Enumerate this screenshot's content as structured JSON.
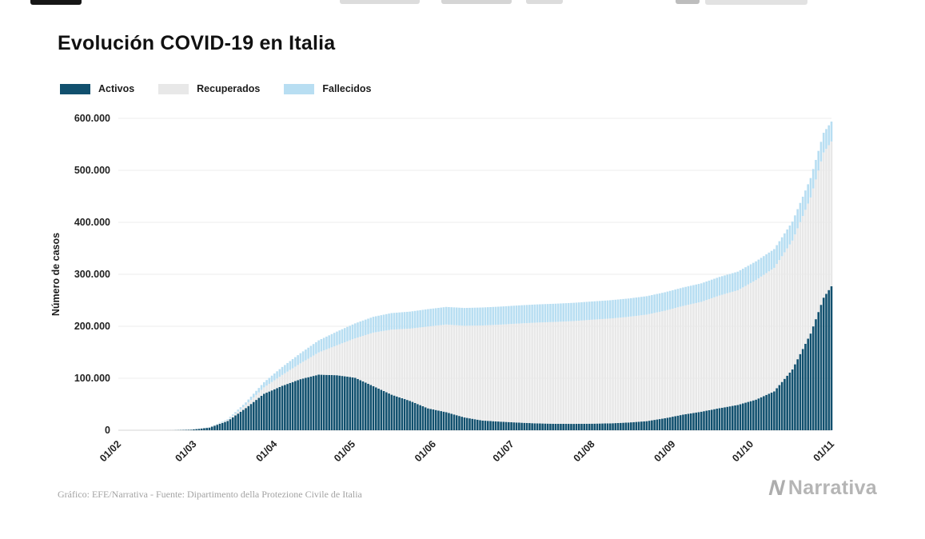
{
  "page": {
    "title": "Evolución COVID-19 en Italia",
    "footer_source": "Gráfico: EFE/Narrativa - Fuente: Dipartimento della Protezione Civile de Italia",
    "brand": "Narrativa",
    "brand_icon": "N"
  },
  "legend": [
    {
      "label": "Activos",
      "color": "#11506e"
    },
    {
      "label": "Recuperados",
      "color": "#e8e8e8"
    },
    {
      "label": "Fallecidos",
      "color": "#b8def2"
    }
  ],
  "chart_data": {
    "type": "bar",
    "stacked": true,
    "title": "Evolución COVID-19 en Italia",
    "xlabel": "",
    "ylabel": "Número de casos",
    "ylim": [
      0,
      600000
    ],
    "grid": "horizontal",
    "legend_position": "top-left",
    "y_ticks": [
      "0",
      "100.000",
      "200.000",
      "300.000",
      "400.000",
      "500.000",
      "600.000"
    ],
    "x_tick_labels": [
      "01/02",
      "01/03",
      "01/04",
      "01/05",
      "01/06",
      "01/07",
      "01/08",
      "01/09",
      "01/10",
      "01/11"
    ],
    "x_tick_days": [
      0,
      29,
      60,
      90,
      121,
      151,
      182,
      213,
      243,
      274
    ],
    "series_order_bottom_to_top": [
      "Activos",
      "Recuperados",
      "Fallecidos"
    ],
    "point_format": [
      "day_offset_from_01_02",
      "activos",
      "recuperados",
      "fallecidos"
    ],
    "points": [
      [
        0,
        0,
        0,
        0
      ],
      [
        7,
        3,
        0,
        0
      ],
      [
        14,
        3,
        0,
        0
      ],
      [
        21,
        76,
        2,
        2
      ],
      [
        28,
        1050,
        50,
        29
      ],
      [
        35,
        5060,
        590,
        235
      ],
      [
        42,
        17750,
        1970,
        1440
      ],
      [
        49,
        42680,
        6070,
        4825
      ],
      [
        56,
        70065,
        12385,
        10025
      ],
      [
        63,
        85390,
        21000,
        15360
      ],
      [
        70,
        98270,
        30455,
        19470
      ],
      [
        77,
        106960,
        42730,
        23230
      ],
      [
        84,
        105845,
        57575,
        26385
      ],
      [
        91,
        100945,
        75945,
        28710
      ],
      [
        98,
        84840,
        103030,
        30395
      ],
      [
        105,
        68350,
        125175,
        31910
      ],
      [
        112,
        56595,
        138840,
        32735
      ],
      [
        119,
        42075,
        157505,
        33415
      ],
      [
        126,
        34730,
        168645,
        33845
      ],
      [
        133,
        24570,
        176370,
        34300
      ],
      [
        140,
        18655,
        182895,
        34635
      ],
      [
        147,
        16495,
        186725,
        34740
      ],
      [
        154,
        14640,
        190715,
        34860
      ],
      [
        161,
        13160,
        193980,
        34945
      ],
      [
        168,
        12405,
        196015,
        35030
      ],
      [
        175,
        12230,
        197840,
        35095
      ],
      [
        182,
        12615,
        199975,
        35145
      ],
      [
        189,
        13265,
        201640,
        35205
      ],
      [
        196,
        14865,
        203325,
        35235
      ],
      [
        203,
        17505,
        204960,
        35430
      ],
      [
        210,
        23035,
        206900,
        35475
      ],
      [
        217,
        30100,
        209025,
        35540
      ],
      [
        224,
        35710,
        211270,
        35605
      ],
      [
        231,
        42455,
        216805,
        35705
      ],
      [
        238,
        48595,
        220665,
        35820
      ],
      [
        245,
        58905,
        229970,
        36030
      ],
      [
        252,
        74830,
        237550,
        36165
      ],
      [
        259,
        116935,
        247870,
        36615
      ],
      [
        266,
        186000,
        261810,
        37340
      ],
      [
        271,
        255090,
        279280,
        37905
      ],
      [
        274,
        277000,
        278500,
        38320
      ]
    ]
  }
}
